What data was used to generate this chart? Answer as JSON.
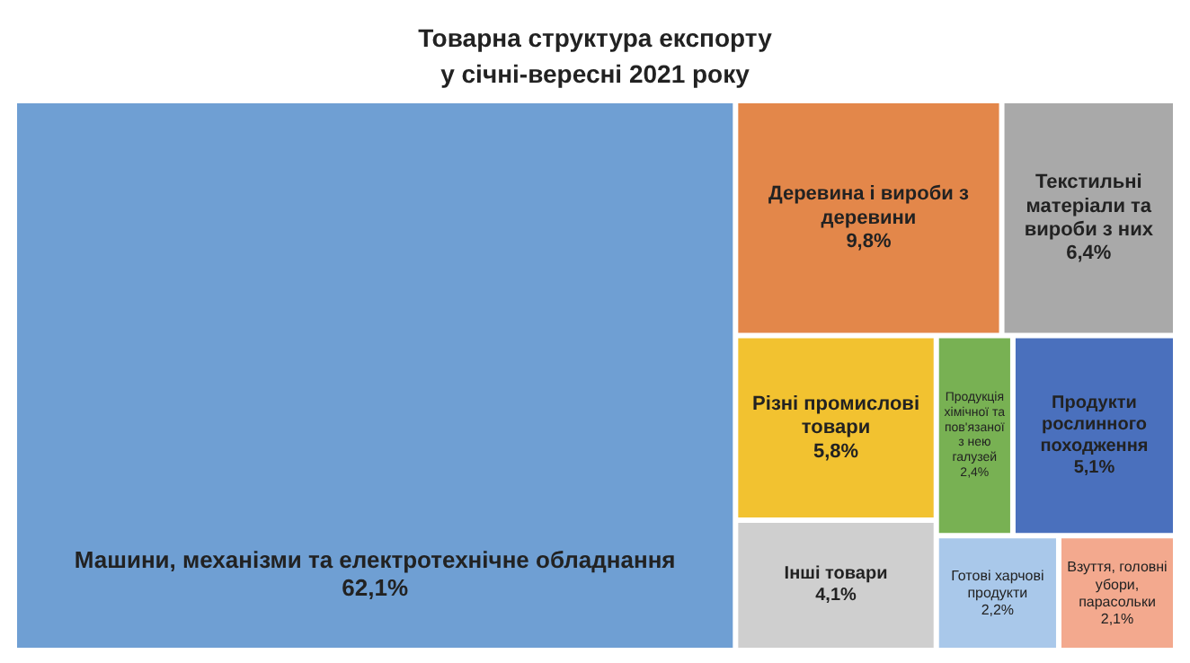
{
  "chart_data": {
    "type": "other",
    "title": "Товарна структура експорту у січні-вересні 2021 року",
    "categories": [
      "Машини, механізми та електротехнічне обладнання",
      "Деревина і вироби з деревини",
      "Текстильні матеріали та вироби з них",
      "Різні промислові товари",
      "Інші товари",
      "Продукція хімічної та пов'язаної з нею галузей",
      "Продукти рослинного походження",
      "Готові харчові продукти",
      "Взуття, головні убори, парасольки"
    ],
    "values": [
      62.1,
      9.8,
      6.4,
      5.8,
      4.1,
      2.4,
      5.1,
      2.2,
      2.1
    ],
    "value_labels": [
      "62,1%",
      "9,8%",
      "6,4%",
      "5,8%",
      "4,1%",
      "2,4%",
      "5,1%",
      "2,2%",
      "2,1%"
    ],
    "colors": [
      "#6f9fd3",
      "#e3874a",
      "#a9a9a9",
      "#f2c230",
      "#cfcfcf",
      "#78b153",
      "#4a70bd",
      "#a9c8ea",
      "#f3a98e"
    ]
  }
}
